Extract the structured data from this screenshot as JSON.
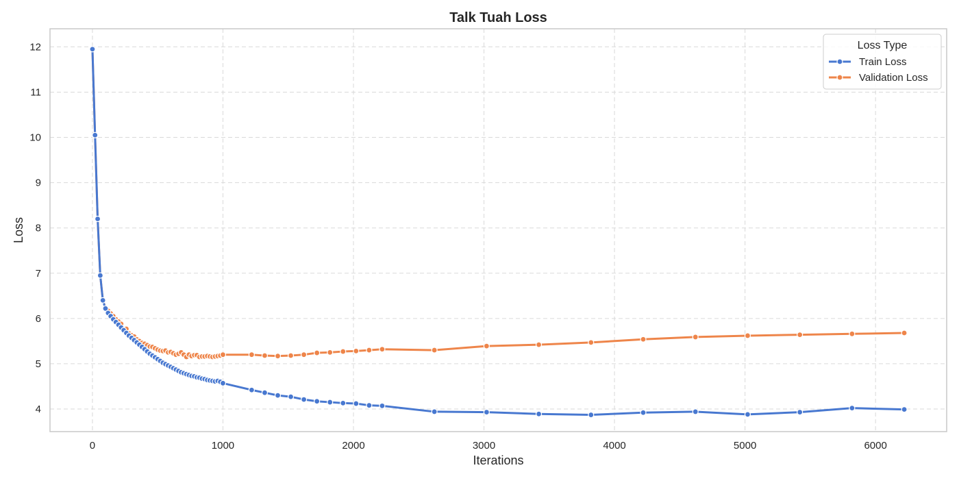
{
  "chart_data": {
    "type": "line",
    "title": "Talk Tuah Loss",
    "xlabel": "Iterations",
    "ylabel": "Loss",
    "xlim": [
      -325,
      6545
    ],
    "ylim": [
      3.5,
      12.4
    ],
    "xticks": [
      0,
      1000,
      2000,
      3000,
      4000,
      5000,
      6000
    ],
    "yticks": [
      4,
      5,
      6,
      7,
      8,
      9,
      10,
      11,
      12
    ],
    "grid": true,
    "legend": {
      "title": "Loss Type",
      "placement": "top-right"
    },
    "series": [
      {
        "name": "Train Loss",
        "color": "#4878d0",
        "points": [
          [
            0,
            11.95
          ],
          [
            20,
            10.05
          ],
          [
            40,
            8.2
          ],
          [
            60,
            6.95
          ],
          [
            80,
            6.4
          ],
          [
            100,
            6.22
          ],
          [
            120,
            6.12
          ],
          [
            140,
            6.05
          ],
          [
            160,
            5.98
          ],
          [
            180,
            5.92
          ],
          [
            200,
            5.86
          ],
          [
            220,
            5.8
          ],
          [
            240,
            5.74
          ],
          [
            260,
            5.68
          ],
          [
            280,
            5.62
          ],
          [
            300,
            5.57
          ],
          [
            320,
            5.52
          ],
          [
            340,
            5.47
          ],
          [
            360,
            5.42
          ],
          [
            380,
            5.37
          ],
          [
            400,
            5.32
          ],
          [
            420,
            5.27
          ],
          [
            440,
            5.22
          ],
          [
            460,
            5.18
          ],
          [
            480,
            5.14
          ],
          [
            500,
            5.1
          ],
          [
            520,
            5.06
          ],
          [
            540,
            5.02
          ],
          [
            560,
            4.99
          ],
          [
            580,
            4.96
          ],
          [
            600,
            4.93
          ],
          [
            620,
            4.9
          ],
          [
            640,
            4.87
          ],
          [
            660,
            4.84
          ],
          [
            680,
            4.81
          ],
          [
            700,
            4.79
          ],
          [
            720,
            4.77
          ],
          [
            740,
            4.75
          ],
          [
            760,
            4.73
          ],
          [
            780,
            4.72
          ],
          [
            800,
            4.7
          ],
          [
            820,
            4.69
          ],
          [
            840,
            4.67
          ],
          [
            860,
            4.66
          ],
          [
            880,
            4.64
          ],
          [
            900,
            4.63
          ],
          [
            920,
            4.62
          ],
          [
            940,
            4.61
          ],
          [
            960,
            4.62
          ],
          [
            980,
            4.6
          ],
          [
            1000,
            4.57
          ],
          [
            1220,
            4.42
          ],
          [
            1320,
            4.36
          ],
          [
            1420,
            4.3
          ],
          [
            1520,
            4.27
          ],
          [
            1620,
            4.21
          ],
          [
            1720,
            4.17
          ],
          [
            1820,
            4.15
          ],
          [
            1920,
            4.13
          ],
          [
            2020,
            4.12
          ],
          [
            2120,
            4.08
          ],
          [
            2220,
            4.07
          ],
          [
            2620,
            3.94
          ],
          [
            3020,
            3.93
          ],
          [
            3420,
            3.89
          ],
          [
            3820,
            3.87
          ],
          [
            4220,
            3.92
          ],
          [
            4620,
            3.94
          ],
          [
            5020,
            3.88
          ],
          [
            5420,
            3.93
          ],
          [
            5820,
            4.02
          ],
          [
            6220,
            3.99
          ]
        ]
      },
      {
        "name": "Validation Loss",
        "color": "#ee854a",
        "points": [
          [
            0,
            11.95
          ],
          [
            20,
            10.05
          ],
          [
            40,
            8.2
          ],
          [
            60,
            6.95
          ],
          [
            80,
            6.4
          ],
          [
            100,
            6.24
          ],
          [
            120,
            6.17
          ],
          [
            140,
            6.11
          ],
          [
            160,
            6.05
          ],
          [
            180,
            5.98
          ],
          [
            200,
            5.93
          ],
          [
            220,
            5.88
          ],
          [
            240,
            5.77
          ],
          [
            260,
            5.77
          ],
          [
            280,
            5.67
          ],
          [
            300,
            5.63
          ],
          [
            320,
            5.6
          ],
          [
            340,
            5.54
          ],
          [
            360,
            5.5
          ],
          [
            380,
            5.46
          ],
          [
            400,
            5.44
          ],
          [
            420,
            5.41
          ],
          [
            440,
            5.38
          ],
          [
            460,
            5.37
          ],
          [
            480,
            5.34
          ],
          [
            500,
            5.31
          ],
          [
            520,
            5.29
          ],
          [
            540,
            5.28
          ],
          [
            560,
            5.29
          ],
          [
            580,
            5.25
          ],
          [
            600,
            5.26
          ],
          [
            620,
            5.23
          ],
          [
            640,
            5.2
          ],
          [
            660,
            5.22
          ],
          [
            680,
            5.25
          ],
          [
            700,
            5.2
          ],
          [
            720,
            5.15
          ],
          [
            740,
            5.2
          ],
          [
            760,
            5.17
          ],
          [
            780,
            5.19
          ],
          [
            800,
            5.19
          ],
          [
            820,
            5.15
          ],
          [
            840,
            5.16
          ],
          [
            860,
            5.16
          ],
          [
            880,
            5.17
          ],
          [
            900,
            5.16
          ],
          [
            920,
            5.15
          ],
          [
            940,
            5.16
          ],
          [
            960,
            5.17
          ],
          [
            980,
            5.18
          ],
          [
            1000,
            5.2
          ],
          [
            1220,
            5.2
          ],
          [
            1320,
            5.18
          ],
          [
            1420,
            5.17
          ],
          [
            1520,
            5.18
          ],
          [
            1620,
            5.2
          ],
          [
            1720,
            5.24
          ],
          [
            1820,
            5.25
          ],
          [
            1920,
            5.27
          ],
          [
            2020,
            5.28
          ],
          [
            2120,
            5.3
          ],
          [
            2220,
            5.32
          ],
          [
            2620,
            5.3
          ],
          [
            3020,
            5.39
          ],
          [
            3420,
            5.42
          ],
          [
            3820,
            5.47
          ],
          [
            4220,
            5.54
          ],
          [
            4620,
            5.59
          ],
          [
            5020,
            5.62
          ],
          [
            5420,
            5.64
          ],
          [
            5820,
            5.66
          ],
          [
            6220,
            5.68
          ]
        ]
      }
    ]
  }
}
